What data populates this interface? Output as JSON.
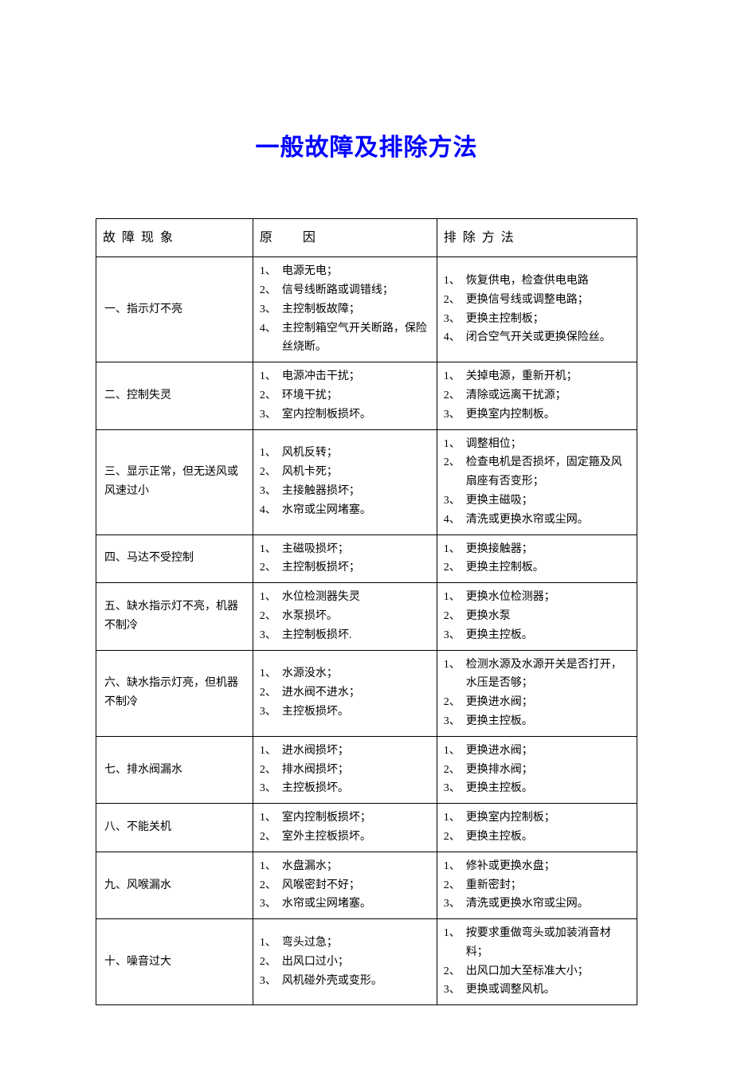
{
  "title": "一般故障及排除方法",
  "headers": {
    "phenomenon": "故 障 现 象",
    "cause": "原　　因",
    "solution": "排 除 方 法"
  },
  "rows": [
    {
      "phenomenon": "一、指示灯不亮",
      "causes": [
        "电源无电；",
        "信号线断路或调错线；",
        "主控制板故障；",
        "主控制箱空气开关断路，保险丝烧断。"
      ],
      "solutions": [
        "恢复供电，检查供电电路",
        "更换信号线或调整电路；",
        "更换主控制板；",
        "闭合空气开关或更换保险丝。"
      ]
    },
    {
      "phenomenon": "二、控制失灵",
      "causes": [
        "电源冲击干扰；",
        "环境干扰；",
        "室内控制板损坏。"
      ],
      "solutions": [
        "关掉电源，重新开机；",
        "清除或远离干扰源；",
        "更换室内控制板。"
      ]
    },
    {
      "phenomenon": "三、显示正常，但无送风或风速过小",
      "causes": [
        "风机反转；",
        "风机卡死；",
        "主接触器损坏；",
        "水帘或尘网堵塞。"
      ],
      "solutions": [
        "调整相位；",
        "检查电机是否损坏，固定箍及风扇座有否变形；",
        "更换主磁吸；",
        "清洗或更换水帘或尘网。"
      ]
    },
    {
      "phenomenon": "四、马达不受控制",
      "causes": [
        "主磁吸损坏；",
        "主控制板损坏；"
      ],
      "solutions": [
        "更换接触器；",
        "更换主控制板。"
      ]
    },
    {
      "phenomenon": "五、缺水指示灯不亮，机器不制冷",
      "causes": [
        "水位检测器失灵",
        "水泵损坏。",
        "主控制板损坏."
      ],
      "solutions": [
        "更换水位检测器；",
        "更换水泵",
        "更换主控板。"
      ]
    },
    {
      "phenomenon": "六、缺水指示灯亮，但机器不制冷",
      "causes": [
        "水源没水；",
        "进水阀不进水；",
        "主控板损坏。"
      ],
      "solutions": [
        "检测水源及水源开关是否打开，水压是否够；",
        "更换进水阀；",
        "更换主控板。"
      ]
    },
    {
      "phenomenon": "七、排水阀漏水",
      "causes": [
        "进水阀损坏；",
        "排水阀损坏；",
        "主控板损坏。"
      ],
      "solutions": [
        "更换进水阀；",
        "更换排水阀；",
        "更换主控板。"
      ]
    },
    {
      "phenomenon": "八、不能关机",
      "causes": [
        "室内控制板损坏；",
        "室外主控板损坏。"
      ],
      "solutions": [
        "更换室内控制板；",
        "更换主控板。"
      ]
    },
    {
      "phenomenon": "九、风喉漏水",
      "causes": [
        "水盘漏水；",
        "风喉密封不好；",
        "水帘或尘网堵塞。"
      ],
      "solutions": [
        "修补或更换水盘；",
        "重新密封；",
        "清洗或更换水帘或尘网。"
      ]
    },
    {
      "phenomenon": "十、噪音过大",
      "causes": [
        "弯头过急；",
        "出风口过小；",
        "风机碰外壳或变形。"
      ],
      "solutions": [
        "按要求重做弯头或加装消音材料；",
        "出风口加大至标准大小；",
        "更换或调整风机。"
      ]
    }
  ]
}
